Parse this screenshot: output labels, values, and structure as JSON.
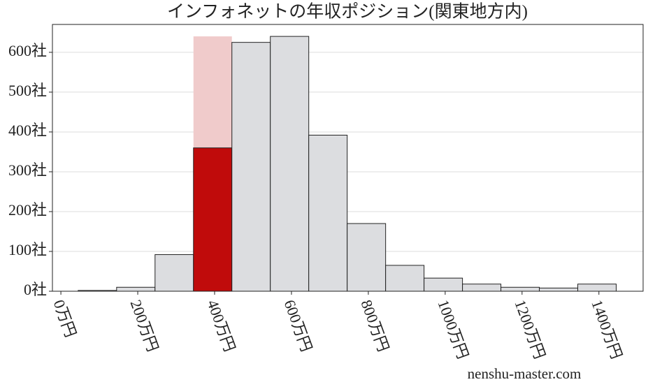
{
  "chart_data": {
    "type": "histogram",
    "title": "インフォネットの年収ポジション(関東地方内)",
    "watermark": "nenshu-master.com",
    "bins": [
      45,
      145,
      245,
      345,
      445,
      545,
      645,
      745,
      845,
      945,
      1045,
      1145,
      1245,
      1345,
      1445
    ],
    "values": [
      2,
      10,
      92,
      360,
      625,
      640,
      392,
      170,
      65,
      33,
      18,
      10,
      8,
      18
    ],
    "color": "#dcdde0",
    "highlight_index": 3,
    "highlight_color": "#c00b0b",
    "highlight_background": 640,
    "highlight_background_color": "#f0cbcb",
    "xlim": [
      -22,
      1515
    ],
    "ylim": [
      0,
      670
    ],
    "xticks": [
      {
        "value": 0,
        "label": "0万円"
      },
      {
        "value": 200,
        "label": "200万円"
      },
      {
        "value": 400,
        "label": "400万円"
      },
      {
        "value": 600,
        "label": "600万円"
      },
      {
        "value": 800,
        "label": "800万円"
      },
      {
        "value": 1000,
        "label": "1000万円"
      },
      {
        "value": 1200,
        "label": "1200万円"
      },
      {
        "value": 1400,
        "label": "1400万円"
      }
    ],
    "yticks": [
      {
        "value": 0,
        "label": "0社"
      },
      {
        "value": 100,
        "label": "100社"
      },
      {
        "value": 200,
        "label": "200社"
      },
      {
        "value": 300,
        "label": "300社"
      },
      {
        "value": 400,
        "label": "400社"
      },
      {
        "value": 500,
        "label": "500社"
      },
      {
        "value": 600,
        "label": "600社"
      }
    ],
    "grid": true
  }
}
